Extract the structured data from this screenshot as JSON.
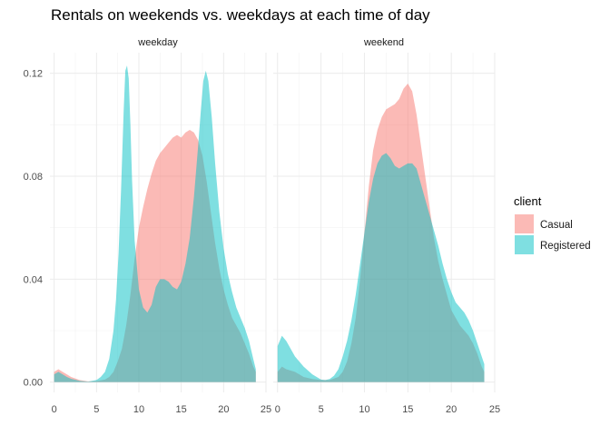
{
  "chart_data": {
    "type": "area",
    "title": "Rentals on weekends vs. weekdays at each time of day",
    "xlabel": "",
    "ylabel": "",
    "xlim": [
      -0.5,
      25
    ],
    "ylim": [
      -0.004,
      0.128
    ],
    "x_ticks": [
      0,
      5,
      10,
      15,
      20,
      25
    ],
    "y_ticks": [
      0.0,
      0.04,
      0.08,
      0.12
    ],
    "y_tick_labels": [
      "0.00",
      "0.04",
      "0.08",
      "0.12"
    ],
    "grid": true,
    "legend": {
      "title": "client",
      "position": "right",
      "entries": [
        {
          "label": "Casual",
          "color": "#F8766D"
        },
        {
          "label": "Registered",
          "color": "#00BFC4"
        }
      ]
    },
    "panels": [
      {
        "label": "weekday",
        "series": [
          {
            "name": "Casual",
            "color": "#F8766D",
            "points": [
              [
                0,
                0.004
              ],
              [
                0.5,
                0.005
              ],
              [
                1,
                0.004
              ],
              [
                1.5,
                0.003
              ],
              [
                2,
                0.002
              ],
              [
                3,
                0.0008
              ],
              [
                4,
                0.0003
              ],
              [
                5,
                0.0004
              ],
              [
                6,
                0.001
              ],
              [
                6.5,
                0.002
              ],
              [
                7,
                0.004
              ],
              [
                7.5,
                0.008
              ],
              [
                8,
                0.013
              ],
              [
                8.5,
                0.022
              ],
              [
                9,
                0.034
              ],
              [
                9.5,
                0.048
              ],
              [
                10,
                0.06
              ],
              [
                10.5,
                0.068
              ],
              [
                11,
                0.075
              ],
              [
                11.5,
                0.081
              ],
              [
                12,
                0.086
              ],
              [
                12.5,
                0.089
              ],
              [
                13,
                0.091
              ],
              [
                13.5,
                0.093
              ],
              [
                14,
                0.095
              ],
              [
                14.5,
                0.096
              ],
              [
                15,
                0.095
              ],
              [
                15.5,
                0.097
              ],
              [
                16,
                0.098
              ],
              [
                16.5,
                0.097
              ],
              [
                17,
                0.094
              ],
              [
                17.5,
                0.088
              ],
              [
                18,
                0.078
              ],
              [
                18.5,
                0.066
              ],
              [
                19,
                0.054
              ],
              [
                19.5,
                0.044
              ],
              [
                20,
                0.036
              ],
              [
                20.5,
                0.03
              ],
              [
                21,
                0.025
              ],
              [
                21.5,
                0.022
              ],
              [
                22,
                0.019
              ],
              [
                22.5,
                0.015
              ],
              [
                23,
                0.011
              ],
              [
                23.5,
                0.006
              ],
              [
                23.8,
                0.004
              ]
            ]
          },
          {
            "name": "Registered",
            "color": "#00BFC4",
            "points": [
              [
                0,
                0.003
              ],
              [
                0.5,
                0.004
              ],
              [
                1,
                0.003
              ],
              [
                1.5,
                0.002
              ],
              [
                2,
                0.0013
              ],
              [
                3,
                0.0005
              ],
              [
                4,
                0.0002
              ],
              [
                5,
                0.0008
              ],
              [
                5.5,
                0.002
              ],
              [
                6,
                0.004
              ],
              [
                6.5,
                0.009
              ],
              [
                7,
                0.02
              ],
              [
                7.3,
                0.032
              ],
              [
                7.6,
                0.05
              ],
              [
                7.9,
                0.075
              ],
              [
                8.2,
                0.105
              ],
              [
                8.4,
                0.121
              ],
              [
                8.6,
                0.123
              ],
              [
                8.8,
                0.118
              ],
              [
                9.0,
                0.1
              ],
              [
                9.2,
                0.078
              ],
              [
                9.5,
                0.055
              ],
              [
                10,
                0.036
              ],
              [
                10.5,
                0.029
              ],
              [
                11,
                0.027
              ],
              [
                11.5,
                0.03
              ],
              [
                12,
                0.037
              ],
              [
                12.5,
                0.04
              ],
              [
                13,
                0.04
              ],
              [
                13.5,
                0.039
              ],
              [
                14,
                0.037
              ],
              [
                14.5,
                0.036
              ],
              [
                15,
                0.039
              ],
              [
                15.5,
                0.046
              ],
              [
                16,
                0.056
              ],
              [
                16.5,
                0.072
              ],
              [
                17,
                0.092
              ],
              [
                17.3,
                0.105
              ],
              [
                17.6,
                0.117
              ],
              [
                17.9,
                0.121
              ],
              [
                18.2,
                0.117
              ],
              [
                18.6,
                0.103
              ],
              [
                19,
                0.085
              ],
              [
                19.5,
                0.066
              ],
              [
                20,
                0.052
              ],
              [
                20.5,
                0.042
              ],
              [
                21,
                0.035
              ],
              [
                21.5,
                0.029
              ],
              [
                22,
                0.025
              ],
              [
                22.5,
                0.021
              ],
              [
                23,
                0.016
              ],
              [
                23.5,
                0.009
              ],
              [
                23.8,
                0.005
              ]
            ]
          }
        ]
      },
      {
        "label": "weekend",
        "series": [
          {
            "name": "Casual",
            "color": "#F8766D",
            "points": [
              [
                0,
                0.004
              ],
              [
                0.5,
                0.006
              ],
              [
                1,
                0.005
              ],
              [
                2,
                0.004
              ],
              [
                3,
                0.002
              ],
              [
                4,
                0.0012
              ],
              [
                5,
                0.0008
              ],
              [
                6,
                0.0008
              ],
              [
                7,
                0.002
              ],
              [
                7.5,
                0.004
              ],
              [
                8,
                0.008
              ],
              [
                8.5,
                0.015
              ],
              [
                9,
                0.025
              ],
              [
                9.5,
                0.04
              ],
              [
                10,
                0.058
              ],
              [
                10.5,
                0.076
              ],
              [
                11,
                0.09
              ],
              [
                11.5,
                0.098
              ],
              [
                12,
                0.103
              ],
              [
                12.5,
                0.106
              ],
              [
                13,
                0.107
              ],
              [
                13.5,
                0.108
              ],
              [
                14,
                0.11
              ],
              [
                14.5,
                0.114
              ],
              [
                15,
                0.116
              ],
              [
                15.5,
                0.113
              ],
              [
                16,
                0.104
              ],
              [
                16.5,
                0.092
              ],
              [
                17,
                0.08
              ],
              [
                17.5,
                0.068
              ],
              [
                18,
                0.056
              ],
              [
                18.5,
                0.047
              ],
              [
                19,
                0.04
              ],
              [
                19.5,
                0.034
              ],
              [
                20,
                0.028
              ],
              [
                20.5,
                0.025
              ],
              [
                21,
                0.022
              ],
              [
                21.5,
                0.02
              ],
              [
                22,
                0.018
              ],
              [
                22.5,
                0.015
              ],
              [
                23,
                0.011
              ],
              [
                23.5,
                0.006
              ],
              [
                23.8,
                0.004
              ]
            ]
          },
          {
            "name": "Registered",
            "color": "#00BFC4",
            "points": [
              [
                0,
                0.014
              ],
              [
                0.5,
                0.018
              ],
              [
                1,
                0.016
              ],
              [
                1.5,
                0.013
              ],
              [
                2,
                0.01
              ],
              [
                3,
                0.006
              ],
              [
                4,
                0.003
              ],
              [
                5,
                0.001
              ],
              [
                5.5,
                0.0008
              ],
              [
                6,
                0.0012
              ],
              [
                6.5,
                0.0025
              ],
              [
                7,
                0.005
              ],
              [
                7.5,
                0.01
              ],
              [
                8,
                0.016
              ],
              [
                8.5,
                0.024
              ],
              [
                9,
                0.034
              ],
              [
                9.5,
                0.046
              ],
              [
                10,
                0.058
              ],
              [
                10.5,
                0.07
              ],
              [
                11,
                0.079
              ],
              [
                11.5,
                0.085
              ],
              [
                12,
                0.088
              ],
              [
                12.5,
                0.089
              ],
              [
                13,
                0.087
              ],
              [
                13.5,
                0.084
              ],
              [
                14,
                0.083
              ],
              [
                14.5,
                0.084
              ],
              [
                15,
                0.085
              ],
              [
                15.5,
                0.085
              ],
              [
                16,
                0.083
              ],
              [
                16.5,
                0.077
              ],
              [
                17,
                0.071
              ],
              [
                17.5,
                0.065
              ],
              [
                18,
                0.059
              ],
              [
                18.5,
                0.053
              ],
              [
                19,
                0.046
              ],
              [
                19.5,
                0.04
              ],
              [
                20,
                0.035
              ],
              [
                20.5,
                0.031
              ],
              [
                21,
                0.029
              ],
              [
                21.5,
                0.027
              ],
              [
                22,
                0.024
              ],
              [
                22.5,
                0.02
              ],
              [
                23,
                0.015
              ],
              [
                23.5,
                0.01
              ],
              [
                23.8,
                0.007
              ]
            ]
          }
        ]
      }
    ]
  }
}
